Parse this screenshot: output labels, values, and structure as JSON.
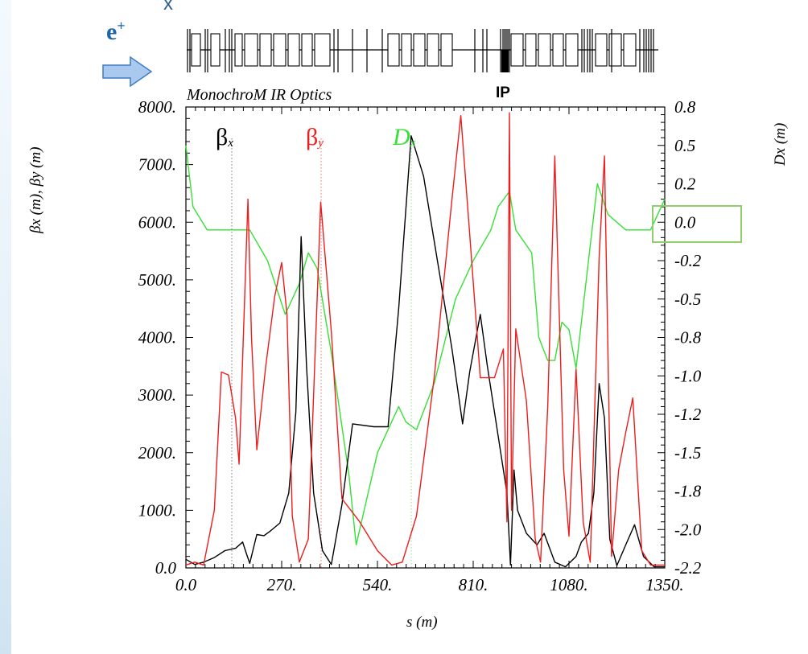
{
  "header": {
    "fragment": "x",
    "beam_label": "e",
    "beam_sup": "+",
    "lattice_title": "MonochroM IR Optics",
    "ip_label": "IP"
  },
  "colors": {
    "beta_x": "#000000",
    "beta_y": "#ee1c1c",
    "D_x": "#36e036",
    "arrow_fill": "#a9c9ee",
    "arrow_stroke": "#3f7cc4",
    "highlight_box": "#8fce6a"
  },
  "chart_data": {
    "type": "line",
    "title": "MonochroM IR Optics",
    "xlabel": "s (m)",
    "ylabel_left": "βx (m), βy (m)",
    "ylabel_right": "Dx (m)",
    "xlim": [
      0,
      1350
    ],
    "ylim_left": [
      0,
      8000
    ],
    "ylim_right": [
      -2.2,
      0.8
    ],
    "x_tick_labels": [
      "0.0",
      "270.",
      "540.",
      "810.",
      "1080.",
      "1350."
    ],
    "left_tick_labels": [
      "0.0",
      "1000.",
      "2000.",
      "3000.",
      "4000.",
      "5000.",
      "6000.",
      "7000.",
      "8000."
    ],
    "right_tick_labels": [
      "-2.2",
      "-2.0",
      "-1.8",
      "-1.5",
      "-1.2",
      "-1.0",
      "-0.8",
      "-0.5",
      "-0.2",
      "0.0",
      "0.2",
      "0.5",
      "0.8"
    ],
    "legend": [
      "βx",
      "βy",
      "Dx"
    ],
    "grid": false,
    "series": [
      {
        "name": "βx",
        "axis": "left",
        "points": [
          [
            0,
            150
          ],
          [
            25,
            60
          ],
          [
            50,
            100
          ],
          [
            80,
            180
          ],
          [
            110,
            300
          ],
          [
            140,
            340
          ],
          [
            160,
            450
          ],
          [
            170,
            260
          ],
          [
            180,
            80
          ],
          [
            200,
            580
          ],
          [
            220,
            560
          ],
          [
            240,
            650
          ],
          [
            265,
            780
          ],
          [
            290,
            1300
          ],
          [
            310,
            2700
          ],
          [
            325,
            5750
          ],
          [
            340,
            3500
          ],
          [
            360,
            1300
          ],
          [
            385,
            300
          ],
          [
            410,
            60
          ],
          [
            440,
            1100
          ],
          [
            470,
            2500
          ],
          [
            530,
            2450
          ],
          [
            570,
            2450
          ],
          [
            600,
            4500
          ],
          [
            635,
            7500
          ],
          [
            670,
            6800
          ],
          [
            710,
            5300
          ],
          [
            750,
            3800
          ],
          [
            780,
            2500
          ],
          [
            800,
            3400
          ],
          [
            830,
            4400
          ],
          [
            850,
            3500
          ],
          [
            880,
            2300
          ],
          [
            905,
            1300
          ],
          [
            915,
            50
          ],
          [
            925,
            1700
          ],
          [
            935,
            1000
          ],
          [
            960,
            600
          ],
          [
            990,
            400
          ],
          [
            1010,
            600
          ],
          [
            1040,
            100
          ],
          [
            1070,
            20
          ],
          [
            1100,
            200
          ],
          [
            1115,
            450
          ],
          [
            1135,
            600
          ],
          [
            1150,
            1300
          ],
          [
            1165,
            3200
          ],
          [
            1180,
            2600
          ],
          [
            1195,
            500
          ],
          [
            1215,
            40
          ],
          [
            1240,
            400
          ],
          [
            1265,
            750
          ],
          [
            1290,
            200
          ],
          [
            1320,
            20
          ],
          [
            1350,
            20
          ]
        ]
      },
      {
        "name": "βy",
        "axis": "left",
        "points": [
          [
            0,
            50
          ],
          [
            25,
            100
          ],
          [
            50,
            50
          ],
          [
            80,
            1000
          ],
          [
            100,
            3400
          ],
          [
            120,
            3350
          ],
          [
            140,
            2600
          ],
          [
            150,
            1800
          ],
          [
            175,
            6400
          ],
          [
            185,
            4000
          ],
          [
            200,
            2050
          ],
          [
            225,
            3500
          ],
          [
            250,
            4700
          ],
          [
            270,
            5300
          ],
          [
            285,
            4400
          ],
          [
            300,
            900
          ],
          [
            320,
            100
          ],
          [
            345,
            500
          ],
          [
            380,
            6350
          ],
          [
            410,
            4100
          ],
          [
            440,
            1200
          ],
          [
            490,
            800
          ],
          [
            540,
            300
          ],
          [
            580,
            50
          ],
          [
            610,
            100
          ],
          [
            650,
            900
          ],
          [
            700,
            3300
          ],
          [
            750,
            6400
          ],
          [
            775,
            7850
          ],
          [
            800,
            5800
          ],
          [
            830,
            3300
          ],
          [
            870,
            3300
          ],
          [
            895,
            3800
          ],
          [
            905,
            800
          ],
          [
            912,
            7900
          ],
          [
            918,
            1000
          ],
          [
            930,
            4150
          ],
          [
            960,
            2900
          ],
          [
            985,
            500
          ],
          [
            1000,
            100
          ],
          [
            1020,
            2800
          ],
          [
            1040,
            7150
          ],
          [
            1065,
            1700
          ],
          [
            1080,
            550
          ],
          [
            1100,
            3450
          ],
          [
            1120,
            800
          ],
          [
            1140,
            100
          ],
          [
            1165,
            5400
          ],
          [
            1180,
            7150
          ],
          [
            1200,
            200
          ],
          [
            1220,
            1700
          ],
          [
            1240,
            2350
          ],
          [
            1260,
            2950
          ],
          [
            1285,
            300
          ],
          [
            1310,
            50
          ],
          [
            1350,
            50
          ]
        ]
      },
      {
        "name": "Dx",
        "axis": "right",
        "points": [
          [
            0,
            0.55
          ],
          [
            20,
            0.15
          ],
          [
            60,
            0.0
          ],
          [
            150,
            0.0
          ],
          [
            180,
            0.0
          ],
          [
            230,
            -0.2
          ],
          [
            280,
            -0.55
          ],
          [
            320,
            -0.35
          ],
          [
            345,
            -0.15
          ],
          [
            370,
            -0.25
          ],
          [
            410,
            -0.8
          ],
          [
            460,
            -1.6
          ],
          [
            480,
            -2.05
          ],
          [
            540,
            -1.45
          ],
          [
            600,
            -1.15
          ],
          [
            620,
            -1.25
          ],
          [
            650,
            -1.3
          ],
          [
            700,
            -1.0
          ],
          [
            760,
            -0.45
          ],
          [
            810,
            -0.2
          ],
          [
            860,
            -0.0
          ],
          [
            880,
            0.15
          ],
          [
            912,
            0.25
          ],
          [
            930,
            0.0
          ],
          [
            975,
            -0.15
          ],
          [
            995,
            -0.7
          ],
          [
            1020,
            -0.85
          ],
          [
            1040,
            -0.85
          ],
          [
            1060,
            -0.6
          ],
          [
            1080,
            -0.65
          ],
          [
            1100,
            -0.9
          ],
          [
            1160,
            0.3
          ],
          [
            1190,
            0.1
          ],
          [
            1240,
            0.0
          ],
          [
            1310,
            0.0
          ],
          [
            1350,
            0.2
          ]
        ]
      }
    ]
  }
}
